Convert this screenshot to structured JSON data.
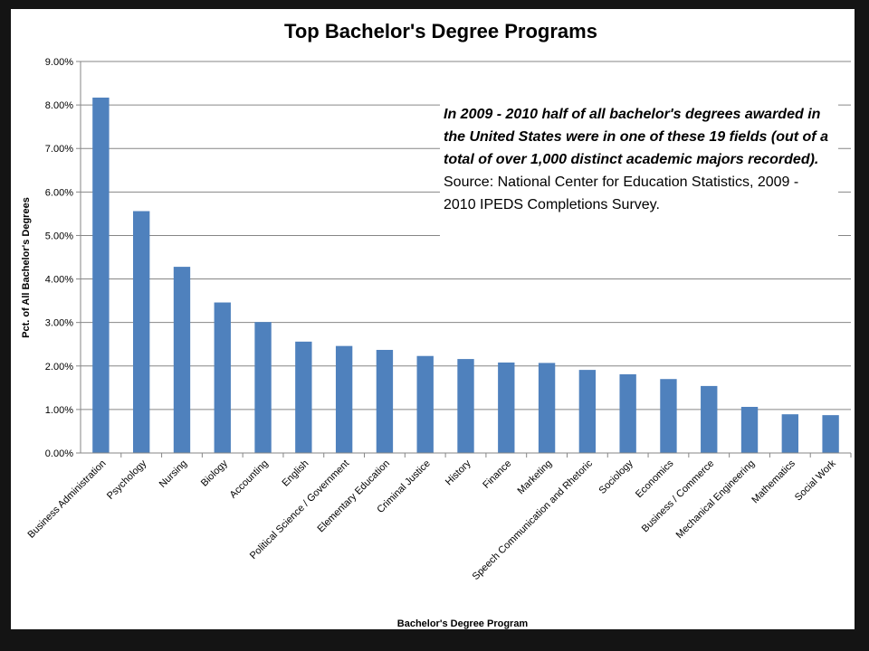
{
  "chart_data": {
    "type": "bar",
    "title": "Top Bachelor's Degree Programs",
    "xlabel": "Bachelor's Degree Program",
    "ylabel": "Pct. of All Bachelor's Degrees",
    "ylim": [
      0,
      9
    ],
    "yticks": [
      "0.00%",
      "1.00%",
      "2.00%",
      "3.00%",
      "4.00%",
      "5.00%",
      "6.00%",
      "7.00%",
      "8.00%",
      "9.00%"
    ],
    "grid": true,
    "categories": [
      "Business Administration",
      "Psychology",
      "Nursing",
      "Biology",
      "Accounting",
      "English",
      "Political Science / Government",
      "Elementary Education",
      "Criminal Justice",
      "History",
      "Finance",
      "Marketing",
      "Speech Communication and Rhetoric",
      "Sociology",
      "Economics",
      "Business / Commerce",
      "Mechanical Engineering",
      "Mathematics",
      "Social Work"
    ],
    "values": [
      8.17,
      5.56,
      4.28,
      3.46,
      3.01,
      2.56,
      2.46,
      2.37,
      2.23,
      2.16,
      2.08,
      2.07,
      1.91,
      1.81,
      1.7,
      1.54,
      1.06,
      0.89,
      0.87
    ],
    "bar_color": "#4f81bd",
    "gridline_color": "#868686",
    "annotation": {
      "emphasis": "In 2009 - 2010 half of all bachelor's degrees awarded in the United States were in one of these 19 fields (out of a total of over 1,000 distinct academic majors recorded).",
      "source": "Source: National Center for Education Statistics, 2009 - 2010 IPEDS Completions Survey."
    }
  }
}
